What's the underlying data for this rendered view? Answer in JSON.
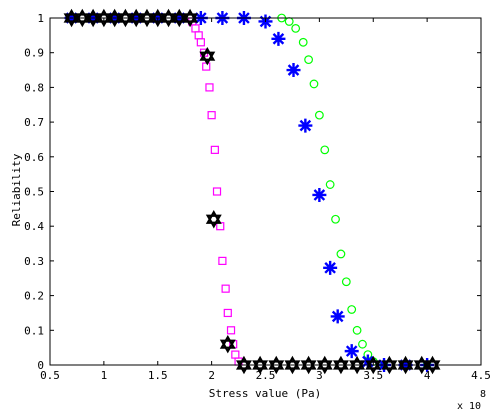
{
  "chart_data": {
    "type": "scatter",
    "title": "",
    "xlabel": "Stress value (Pa)",
    "ylabel": "Reliability",
    "x_exponent_label": "x 10",
    "x_exponent_power": "8",
    "xlim": [
      0.5,
      4.5
    ],
    "ylim": [
      0,
      1
    ],
    "xticks": [
      "0.5",
      "1",
      "1.5",
      "2",
      "2.5",
      "3",
      "3.5",
      "4",
      "4.5"
    ],
    "yticks": [
      "0",
      "0.1",
      "0.2",
      "0.3",
      "0.4",
      "0.5",
      "0.6",
      "0.7",
      "0.8",
      "0.9",
      "1"
    ],
    "grid": false,
    "colors": {
      "magenta": "#ff00ff",
      "green": "#00ff00",
      "blue": "#0000ff",
      "black": "#000000"
    },
    "series": [
      {
        "marker": "square",
        "color": "#ff00ff",
        "x": [
          0.7,
          0.9,
          1.1,
          1.3,
          1.5,
          1.7,
          1.8,
          1.82,
          1.85,
          1.88,
          1.9,
          1.93,
          1.95,
          1.98,
          2.0,
          2.03,
          2.05,
          2.08,
          2.1,
          2.13,
          2.15,
          2.18,
          2.2,
          2.22,
          2.25,
          2.3
        ],
        "y": [
          1,
          1,
          1,
          1,
          1,
          1,
          1,
          0.99,
          0.97,
          0.95,
          0.93,
          0.9,
          0.86,
          0.8,
          0.72,
          0.62,
          0.5,
          0.4,
          0.3,
          0.22,
          0.15,
          0.1,
          0.06,
          0.03,
          0.01,
          0
        ]
      },
      {
        "marker": "circle",
        "color": "#00ff00",
        "x": [
          2.65,
          2.72,
          2.78,
          2.85,
          2.9,
          2.95,
          3.0,
          3.05,
          3.1,
          3.15,
          3.2,
          3.25,
          3.3,
          3.35,
          3.4,
          3.45,
          3.5,
          3.6,
          3.8,
          4.0
        ],
        "y": [
          1,
          0.99,
          0.97,
          0.93,
          0.88,
          0.81,
          0.72,
          0.62,
          0.52,
          0.42,
          0.32,
          0.24,
          0.16,
          0.1,
          0.06,
          0.03,
          0.01,
          0,
          0,
          0
        ]
      },
      {
        "marker": "asterisk",
        "color": "#0000ff",
        "x": [
          0.7,
          0.9,
          1.1,
          1.3,
          1.5,
          1.7,
          1.9,
          2.1,
          2.3,
          2.5,
          2.62,
          2.76,
          2.87,
          3.0,
          3.1,
          3.17,
          3.3,
          3.45,
          3.6,
          3.8,
          4.0
        ],
        "y": [
          1,
          1,
          1,
          1,
          1,
          1,
          1,
          1,
          1,
          0.99,
          0.94,
          0.85,
          0.69,
          0.49,
          0.28,
          0.14,
          0.04,
          0.01,
          0,
          0,
          0
        ]
      },
      {
        "marker": "hexagram",
        "color": "#000000",
        "x": [
          0.7,
          0.8,
          0.9,
          1.0,
          1.1,
          1.2,
          1.3,
          1.4,
          1.5,
          1.6,
          1.7,
          1.8,
          1.96,
          2.02,
          2.15,
          2.3,
          2.45,
          2.6,
          2.75,
          2.9,
          3.05,
          3.2,
          3.35,
          3.5,
          3.65,
          3.8,
          3.95,
          4.05
        ],
        "y": [
          1,
          1,
          1,
          1,
          1,
          1,
          1,
          1,
          1,
          1,
          1,
          1,
          0.89,
          0.42,
          0.06,
          0,
          0,
          0,
          0,
          0,
          0,
          0,
          0,
          0,
          0,
          0,
          0,
          0
        ]
      }
    ]
  }
}
